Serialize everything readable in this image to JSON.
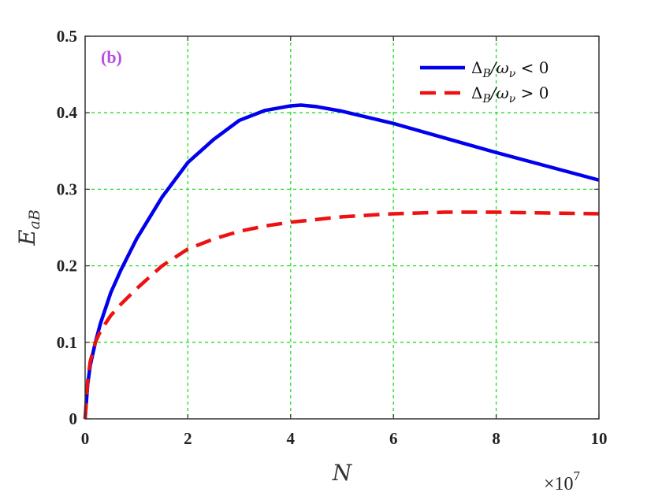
{
  "chart_data": {
    "type": "line",
    "panel_label": "(b)",
    "xlabel": "N",
    "ylabel": "E",
    "ylabel_sub": "aB",
    "x_exponent_label": "×10",
    "x_exponent": "7",
    "xlim": [
      0,
      10
    ],
    "ylim": [
      0,
      0.5
    ],
    "x_ticks": [
      "0",
      "2",
      "4",
      "6",
      "8",
      "10"
    ],
    "y_ticks": [
      "0",
      "0.1",
      "0.2",
      "0.3",
      "0.4",
      "0.5"
    ],
    "grid": true,
    "legend_position": "top-right",
    "series": [
      {
        "name": "Δ_B/ω_ν < 0",
        "legend": {
          "main": "Δ",
          "sub1": "B",
          "mid": "/ω",
          "sub2": "ν",
          "rel": " < 0"
        },
        "color": "#0000ee",
        "style": "solid",
        "x": [
          0,
          0.05,
          0.1,
          0.2,
          0.3,
          0.5,
          0.7,
          1.0,
          1.5,
          2.0,
          2.5,
          3.0,
          3.5,
          4.0,
          4.2,
          4.5,
          5.0,
          6.0,
          7.0,
          8.0,
          9.0,
          10.0
        ],
        "y": [
          0,
          0.045,
          0.07,
          0.1,
          0.125,
          0.165,
          0.195,
          0.235,
          0.29,
          0.335,
          0.365,
          0.39,
          0.403,
          0.409,
          0.41,
          0.408,
          0.402,
          0.386,
          0.367,
          0.348,
          0.33,
          0.312
        ]
      },
      {
        "name": "Δ_B/ω_ν > 0",
        "legend": {
          "main": "Δ",
          "sub1": "B",
          "mid": "/ω",
          "sub2": "ν",
          "rel": " > 0"
        },
        "color": "#ee1111",
        "style": "dashed",
        "x": [
          0,
          0.05,
          0.1,
          0.2,
          0.3,
          0.5,
          0.7,
          1.0,
          1.5,
          2.0,
          2.5,
          3.0,
          3.5,
          4.0,
          5.0,
          6.0,
          7.0,
          8.0,
          9.0,
          10.0
        ],
        "y": [
          0,
          0.05,
          0.075,
          0.1,
          0.115,
          0.135,
          0.15,
          0.17,
          0.2,
          0.222,
          0.235,
          0.245,
          0.252,
          0.257,
          0.264,
          0.268,
          0.27,
          0.27,
          0.269,
          0.268
        ]
      }
    ]
  }
}
